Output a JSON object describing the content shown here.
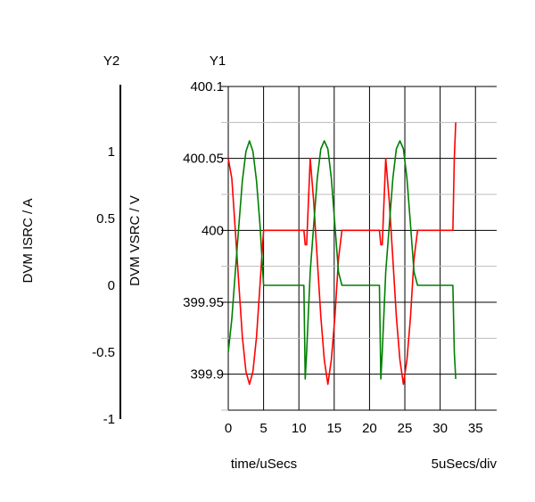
{
  "chart_data": {
    "type": "line",
    "axes_labels": {
      "y2_title": "Y2",
      "y1_title": "Y1",
      "y2_label": "DVM ISRC / A",
      "y1_label": "DVM VSRC / V",
      "xlabel": "time/uSecs",
      "x_scale_note": "5uSecs/div"
    },
    "xlim": [
      0,
      38
    ],
    "y1lim": [
      399.875,
      400.1
    ],
    "y2lim": [
      -1,
      1.5
    ],
    "x_ticks": [
      "0",
      "5",
      "10",
      "15",
      "20",
      "25",
      "30",
      "35"
    ],
    "y1_ticks": [
      "399.9",
      "399.95",
      "400",
      "400.05",
      "400.1"
    ],
    "y2_ticks": [
      "-1",
      "-0.5",
      "0",
      "0.5",
      "1"
    ],
    "grid": true,
    "series": [
      {
        "axis": "Y1",
        "color": "#ff0000",
        "x": [
          0,
          0.5,
          1,
          1.5,
          2,
          2.5,
          3,
          3.5,
          4,
          4.5,
          5,
          5.2,
          5.4,
          8,
          10.7,
          10.9,
          11.1,
          11.6,
          12.1,
          12.6,
          13.1,
          13.6,
          14.1,
          14.6,
          15.1,
          15.6,
          16.1,
          16.3,
          16.5,
          19,
          21.4,
          21.6,
          21.8,
          22.3,
          22.8,
          23.3,
          23.8,
          24.3,
          24.8,
          25.3,
          25.8,
          26.3,
          26.8,
          27,
          27.2,
          30,
          31.8,
          32,
          32.2
        ],
        "y": [
          400.05,
          400.036,
          400.0,
          399.962,
          399.926,
          399.902,
          399.893,
          399.902,
          399.926,
          399.962,
          400.0,
          400.0,
          400.0,
          400.0,
          400.0,
          399.99,
          399.99,
          400.05,
          400.02,
          399.98,
          399.94,
          399.91,
          399.893,
          399.91,
          399.94,
          399.98,
          400.0,
          400.0,
          400.0,
          400.0,
          400.0,
          399.99,
          399.99,
          400.05,
          400.02,
          399.98,
          399.94,
          399.91,
          399.893,
          399.91,
          399.94,
          399.98,
          400.0,
          400.0,
          400.0,
          400.0,
          400.0,
          400.05,
          400.075
        ]
      },
      {
        "axis": "Y2",
        "color": "#008000",
        "x": [
          0,
          0.5,
          1,
          1.5,
          2,
          2.5,
          3,
          3.5,
          4,
          4.5,
          5,
          5.2,
          5.4,
          8,
          10.7,
          10.9,
          11.1,
          11.6,
          12.1,
          12.6,
          13.1,
          13.6,
          14.1,
          14.6,
          15.1,
          15.6,
          16.1,
          16.3,
          16.5,
          19,
          21.4,
          21.6,
          21.8,
          22.3,
          22.8,
          23.3,
          23.8,
          24.3,
          24.8,
          25.3,
          25.8,
          26.3,
          26.8,
          27,
          27.2,
          30,
          31.8,
          32,
          32.2
        ],
        "y": [
          -0.5,
          -0.25,
          0.1,
          0.45,
          0.78,
          1.0,
          1.08,
          1.0,
          0.78,
          0.45,
          0.0,
          0.0,
          0.0,
          0.0,
          0.0,
          -0.7,
          -0.5,
          0.1,
          0.45,
          0.8,
          1.02,
          1.08,
          1.02,
          0.8,
          0.45,
          0.1,
          0.0,
          0.0,
          0.0,
          0.0,
          0.0,
          -0.7,
          -0.5,
          0.1,
          0.45,
          0.8,
          1.02,
          1.08,
          1.02,
          0.8,
          0.45,
          0.1,
          0.0,
          0.0,
          0.0,
          0.0,
          0.0,
          -0.5,
          -0.7
        ]
      }
    ]
  }
}
